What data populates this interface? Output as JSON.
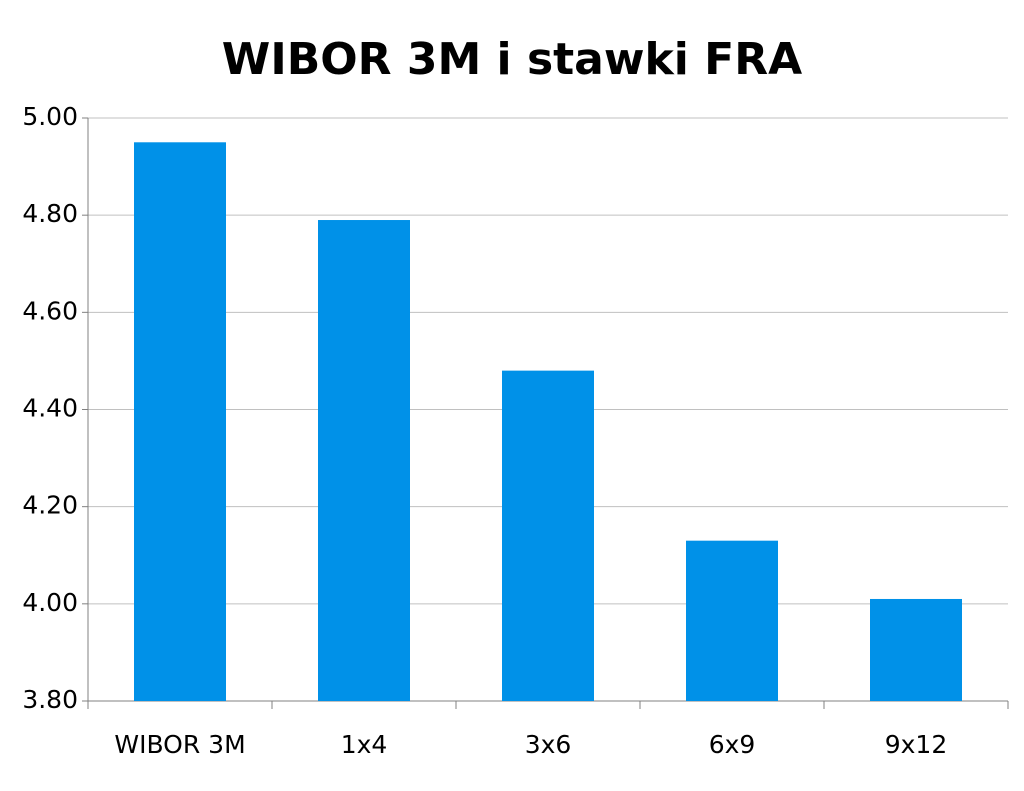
{
  "chart_data": {
    "type": "bar",
    "title": "WIBOR 3M i stawki FRA",
    "categories": [
      "WIBOR 3M",
      "1x4",
      "3x6",
      "6x9",
      "9x12"
    ],
    "values": [
      4.95,
      4.79,
      4.48,
      4.13,
      4.01
    ],
    "color": "#0091e8",
    "ylim": [
      3.8,
      5.0
    ],
    "yticks": [
      {
        "value": 3.8,
        "label": "3.80"
      },
      {
        "value": 4.0,
        "label": "4.00"
      },
      {
        "value": 4.2,
        "label": "4.20"
      },
      {
        "value": 4.4,
        "label": "4.40"
      },
      {
        "value": 4.6,
        "label": "4.60"
      },
      {
        "value": 4.8,
        "label": "4.80"
      },
      {
        "value": 5.0,
        "label": "5.00"
      }
    ],
    "grid": true
  }
}
